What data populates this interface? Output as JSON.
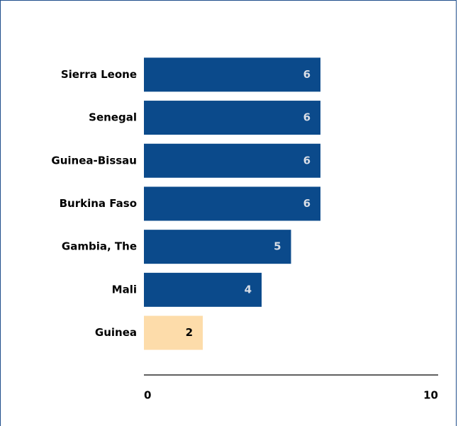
{
  "chart_data": {
    "type": "hbar",
    "categories": [
      "Sierra Leone",
      "Senegal",
      "Guinea-Bissau",
      "Burkina Faso",
      "Gambia, The",
      "Mali",
      "Guinea"
    ],
    "values": [
      6,
      6,
      6,
      6,
      5,
      4,
      2
    ],
    "colors": [
      "#0b4a8b",
      "#0b4a8b",
      "#0b4a8b",
      "#0b4a8b",
      "#0b4a8b",
      "#0b4a8b",
      "#fddcaa"
    ],
    "xlim": [
      0,
      10
    ],
    "xticks": [
      0,
      10
    ],
    "grid": false
  }
}
